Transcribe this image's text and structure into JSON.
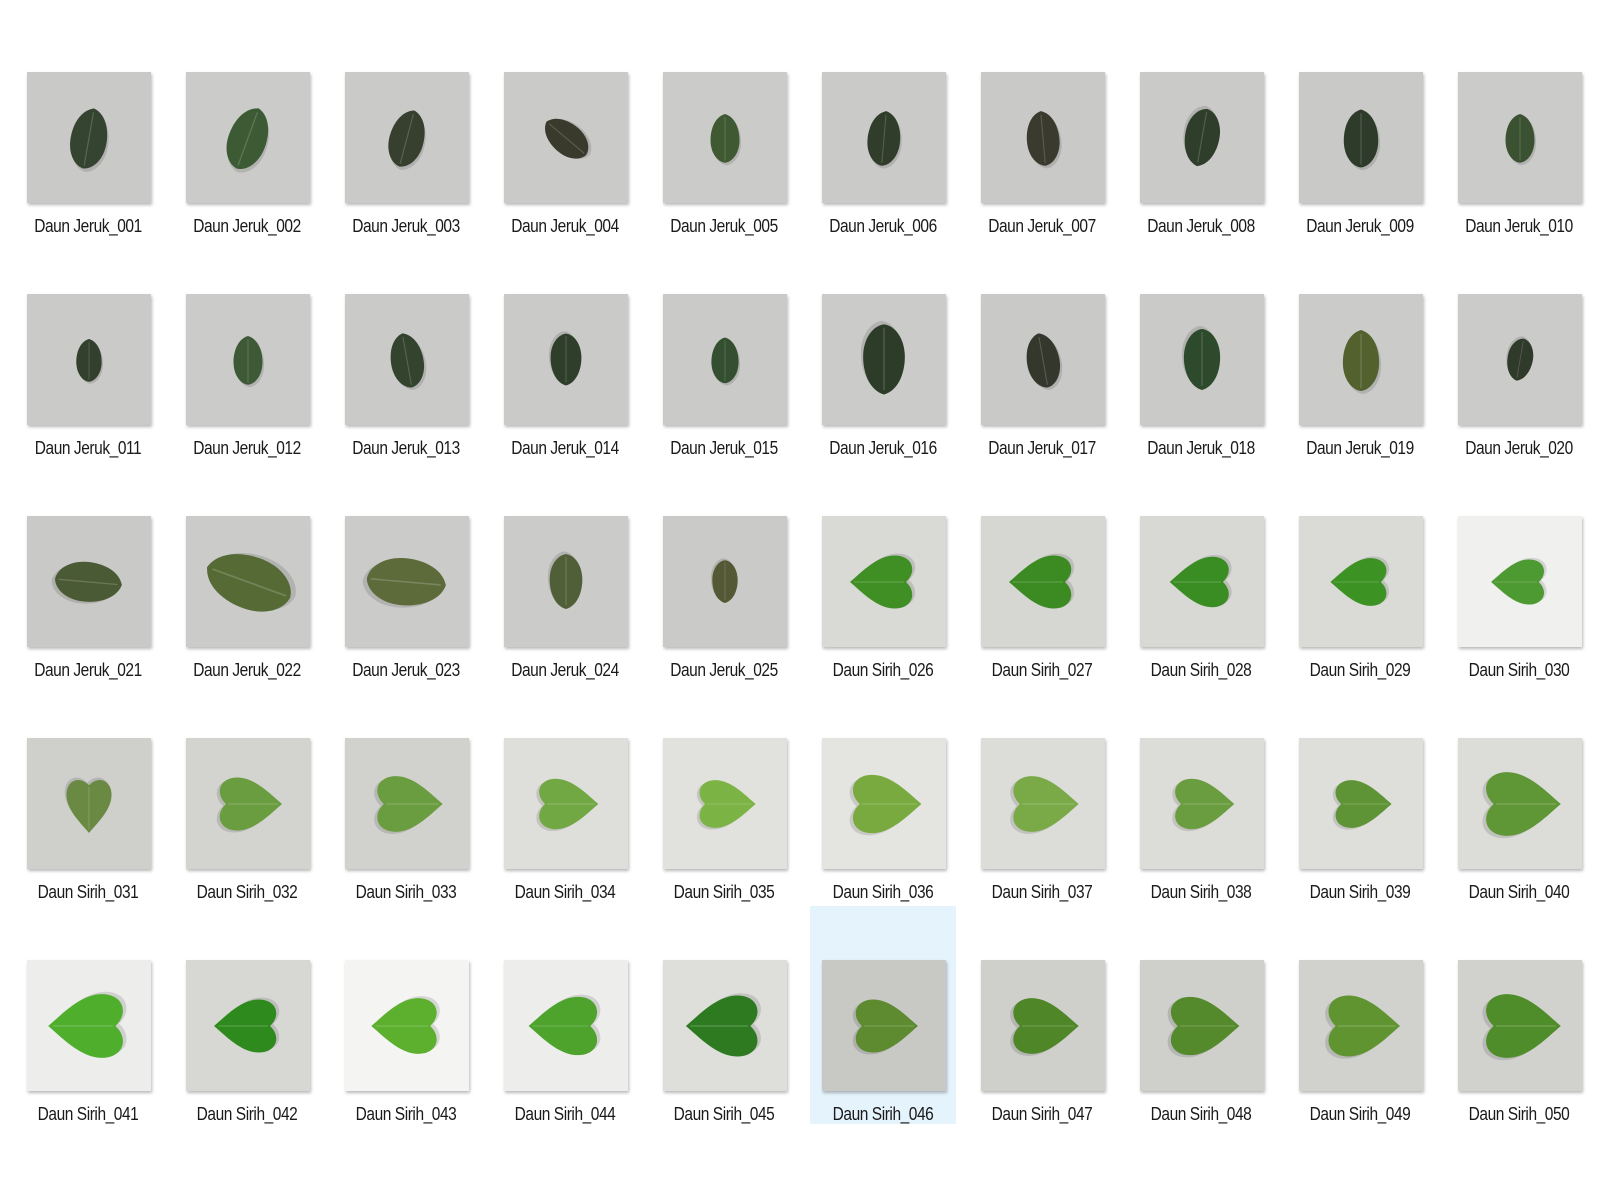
{
  "files": [
    {
      "name": "Daun Jeruk_001",
      "type": "jeruk",
      "bg": "#c9c9c7",
      "leaf": "#354430",
      "rot": 10,
      "scale": 1.0
    },
    {
      "name": "Daun Jeruk_002",
      "type": "jeruk",
      "bg": "#cbcbc9",
      "leaf": "#3c5a33",
      "rot": 20,
      "scale": 1.05
    },
    {
      "name": "Daun Jeruk_003",
      "type": "jeruk",
      "bg": "#cacac8",
      "leaf": "#37402f",
      "rot": 15,
      "scale": 0.95
    },
    {
      "name": "Daun Jeruk_004",
      "type": "jeruk",
      "bg": "#cacac8",
      "leaf": "#3a3a2c",
      "rot": -50,
      "scale": 0.85
    },
    {
      "name": "Daun Jeruk_005",
      "type": "jeruk",
      "bg": "#cbcbc9",
      "leaf": "#3f5a33",
      "rot": 0,
      "scale": 0.8
    },
    {
      "name": "Daun Jeruk_006",
      "type": "jeruk",
      "bg": "#cacac8",
      "leaf": "#2f3d2a",
      "rot": 5,
      "scale": 0.9
    },
    {
      "name": "Daun Jeruk_007",
      "type": "jeruk",
      "bg": "#c9c9c7",
      "leaf": "#3a3a2e",
      "rot": -5,
      "scale": 0.9
    },
    {
      "name": "Daun Jeruk_008",
      "type": "jeruk",
      "bg": "#cacac8",
      "leaf": "#2f3e2b",
      "rot": 190,
      "scale": 0.95
    },
    {
      "name": "Daun Jeruk_009",
      "type": "jeruk",
      "bg": "#c9c9c7",
      "leaf": "#2e3a2a",
      "rot": 0,
      "scale": 0.95
    },
    {
      "name": "Daun Jeruk_010",
      "type": "jeruk",
      "bg": "#cbcbc9",
      "leaf": "#3b5232",
      "rot": 0,
      "scale": 0.8
    },
    {
      "name": "Daun Jeruk_011",
      "type": "jeruk",
      "bg": "#cacac8",
      "leaf": "#34402e",
      "rot": 0,
      "scale": 0.7
    },
    {
      "name": "Daun Jeruk_012",
      "type": "jeruk",
      "bg": "#cbcbc9",
      "leaf": "#3e5936",
      "rot": 0,
      "scale": 0.8
    },
    {
      "name": "Daun Jeruk_013",
      "type": "jeruk",
      "bg": "#cacac8",
      "leaf": "#34432e",
      "rot": -10,
      "scale": 0.9
    },
    {
      "name": "Daun Jeruk_014",
      "type": "jeruk",
      "bg": "#cacac8",
      "leaf": "#2f3d2b",
      "rot": 180,
      "scale": 0.85
    },
    {
      "name": "Daun Jeruk_015",
      "type": "jeruk",
      "bg": "#cacac8",
      "leaf": "#344e30",
      "rot": 0,
      "scale": 0.75
    },
    {
      "name": "Daun Jeruk_016",
      "type": "jeruk",
      "bg": "#cbcbc9",
      "leaf": "#2d3b29",
      "rot": 180,
      "scale": 1.15
    },
    {
      "name": "Daun Jeruk_017",
      "type": "jeruk",
      "bg": "#c9c9c7",
      "leaf": "#34382c",
      "rot": -10,
      "scale": 0.9
    },
    {
      "name": "Daun Jeruk_018",
      "type": "jeruk",
      "bg": "#cacac8",
      "leaf": "#2e4a2c",
      "rot": 180,
      "scale": 1.0
    },
    {
      "name": "Daun Jeruk_019",
      "type": "jeruk",
      "bg": "#cbcbc9",
      "leaf": "#53612f",
      "rot": 0,
      "scale": 1.0
    },
    {
      "name": "Daun Jeruk_020",
      "type": "jeruk",
      "bg": "#cbcbc9",
      "leaf": "#2f3a2a",
      "rot": 190,
      "scale": 0.7
    },
    {
      "name": "Daun Jeruk_021",
      "type": "jeruk",
      "bg": "#c9c9c7",
      "leaf": "#4a5a34",
      "rot": 95,
      "scale": 1.1
    },
    {
      "name": "Daun Jeruk_022",
      "type": "jeruk",
      "bg": "#cbcbc9",
      "leaf": "#556a35",
      "rot": -70,
      "scale": 1.45
    },
    {
      "name": "Daun Jeruk_023",
      "type": "jeruk",
      "bg": "#cbcbc9",
      "leaf": "#5d6a3a",
      "rot": 95,
      "scale": 1.3
    },
    {
      "name": "Daun Jeruk_024",
      "type": "jeruk",
      "bg": "#cbcbc9",
      "leaf": "#505f38",
      "rot": 180,
      "scale": 0.9
    },
    {
      "name": "Daun Jeruk_025",
      "type": "jeruk",
      "bg": "#cacac8",
      "leaf": "#555834",
      "rot": 180,
      "scale": 0.7
    },
    {
      "name": "Daun Sirih_026",
      "type": "sirih",
      "bg": "#d9d9d6",
      "leaf": "#3f8f24",
      "rot": -90,
      "scale": 1.0
    },
    {
      "name": "Daun Sirih_027",
      "type": "sirih",
      "bg": "#d6d6d3",
      "leaf": "#3b8a22",
      "rot": -90,
      "scale": 1.0
    },
    {
      "name": "Daun Sirih_028",
      "type": "sirih",
      "bg": "#d8d8d5",
      "leaf": "#3a8d22",
      "rot": -90,
      "scale": 0.95
    },
    {
      "name": "Daun Sirih_029",
      "type": "sirih",
      "bg": "#dadad7",
      "leaf": "#3d9224",
      "rot": -90,
      "scale": 0.9
    },
    {
      "name": "Daun Sirih_030",
      "type": "sirih",
      "bg": "#f0f0ee",
      "leaf": "#4d9a32",
      "rot": -90,
      "scale": 0.85
    },
    {
      "name": "Daun Sirih_031",
      "type": "sirih",
      "bg": "#cfcfcc",
      "leaf": "#6a8a44",
      "rot": 180,
      "scale": 0.85
    },
    {
      "name": "Daun Sirih_032",
      "type": "sirih",
      "bg": "#d3d3d0",
      "leaf": "#6a9c40",
      "rot": 90,
      "scale": 1.0
    },
    {
      "name": "Daun Sirih_033",
      "type": "sirih",
      "bg": "#d1d1ce",
      "leaf": "#6a9c40",
      "rot": 90,
      "scale": 1.05
    },
    {
      "name": "Daun Sirih_034",
      "type": "sirih",
      "bg": "#dededb",
      "leaf": "#72a844",
      "rot": 90,
      "scale": 0.95
    },
    {
      "name": "Daun Sirih_035",
      "type": "sirih",
      "bg": "#e1e1de",
      "leaf": "#7bb444",
      "rot": 90,
      "scale": 0.9
    },
    {
      "name": "Daun Sirih_036",
      "type": "sirih",
      "bg": "#e4e4e1",
      "leaf": "#79aa40",
      "rot": 90,
      "scale": 1.1
    },
    {
      "name": "Daun Sirih_037",
      "type": "sirih",
      "bg": "#dcdcd9",
      "leaf": "#7aa948",
      "rot": 90,
      "scale": 1.05
    },
    {
      "name": "Daun Sirih_038",
      "type": "sirih",
      "bg": "#dcdcd9",
      "leaf": "#6a9c40",
      "rot": 90,
      "scale": 0.95
    },
    {
      "name": "Daun Sirih_039",
      "type": "sirih",
      "bg": "#dededb",
      "leaf": "#5f9436",
      "rot": 90,
      "scale": 0.9
    },
    {
      "name": "Daun Sirih_040",
      "type": "sirih",
      "bg": "#dcdcd9",
      "leaf": "#5f9636",
      "rot": 90,
      "scale": 1.2
    },
    {
      "name": "Daun Sirih_041",
      "type": "sirih",
      "bg": "#ededeb",
      "leaf": "#4fae2c",
      "rot": -90,
      "scale": 1.2
    },
    {
      "name": "Daun Sirih_042",
      "type": "sirih",
      "bg": "#d7d7d4",
      "leaf": "#2f8a1e",
      "rot": -90,
      "scale": 1.0
    },
    {
      "name": "Daun Sirih_043",
      "type": "sirih",
      "bg": "#f4f4f2",
      "leaf": "#5cb02e",
      "rot": -90,
      "scale": 1.05
    },
    {
      "name": "Daun Sirih_044",
      "type": "sirih",
      "bg": "#ededeb",
      "leaf": "#4da32c",
      "rot": -90,
      "scale": 1.1
    },
    {
      "name": "Daun Sirih_045",
      "type": "sirih",
      "bg": "#dededb",
      "leaf": "#2e7a20",
      "rot": -90,
      "scale": 1.15
    },
    {
      "name": "Daun Sirih_046",
      "type": "sirih",
      "bg": "#c8c8c5",
      "leaf": "#5e8a30",
      "rot": 90,
      "scale": 1.0
    },
    {
      "name": "Daun Sirih_047",
      "type": "sirih",
      "bg": "#cfcfcc",
      "leaf": "#4e8628",
      "rot": 90,
      "scale": 1.05
    },
    {
      "name": "Daun Sirih_048",
      "type": "sirih",
      "bg": "#cfcfcc",
      "leaf": "#558a2c",
      "rot": 90,
      "scale": 1.1
    },
    {
      "name": "Daun Sirih_049",
      "type": "sirih",
      "bg": "#d1d1ce",
      "leaf": "#5f9430",
      "rot": 90,
      "scale": 1.15
    },
    {
      "name": "Daun Sirih_050",
      "type": "sirih",
      "bg": "#d1d1ce",
      "leaf": "#4f8c2a",
      "rot": 90,
      "scale": 1.2
    }
  ],
  "selected_file": "Daun Sirih_046",
  "colors": {
    "selection_bg": "#e5f3fd",
    "label_text": "#1a1a1a",
    "window_bg": "#ffffff"
  }
}
